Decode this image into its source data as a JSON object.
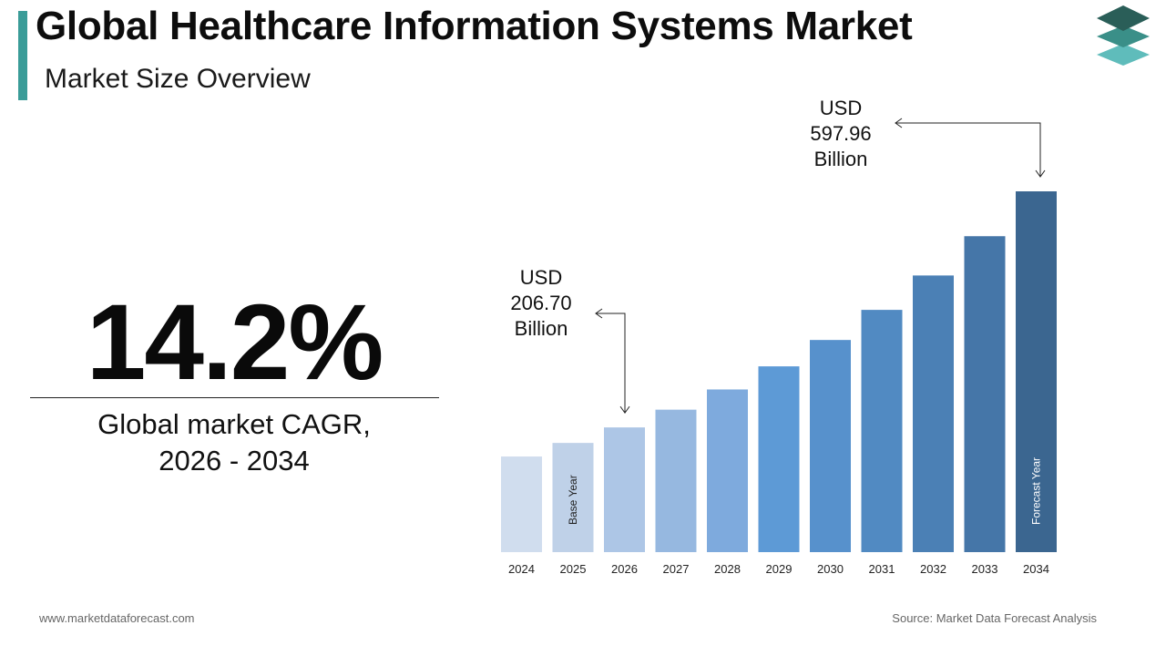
{
  "header": {
    "title": "Global Healthcare Information Systems Market",
    "subtitle": "Market Size Overview"
  },
  "cagr": {
    "value": "14.2%",
    "label_line1": "Global market CAGR,",
    "label_line2": "2026 - 2034"
  },
  "chart_data": {
    "type": "bar",
    "categories": [
      "2024",
      "2025",
      "2026",
      "2027",
      "2028",
      "2029",
      "2030",
      "2031",
      "2032",
      "2033",
      "2034"
    ],
    "values": [
      158.5,
      181.0,
      206.7,
      236.1,
      269.6,
      307.9,
      351.6,
      401.5,
      458.5,
      523.6,
      597.96
    ],
    "ylim": [
      0,
      597.96
    ],
    "grid": false,
    "colors": [
      "#d0ddee",
      "#bfd1e8",
      "#adc6e6",
      "#96b8e0",
      "#7eaadd",
      "#5d9ad6",
      "#5791cc",
      "#518ac2",
      "#4b80b5",
      "#4576a8",
      "#3b6690"
    ],
    "bar_labels": [
      {
        "category": "2025",
        "text": "Base Year"
      },
      {
        "category": "2034",
        "text": "Forecast Year"
      }
    ],
    "annotations": [
      {
        "category": "2026",
        "lines": [
          "USD",
          "206.70",
          "Billion"
        ]
      },
      {
        "category": "2034",
        "lines": [
          "USD",
          "597.96",
          "Billion"
        ]
      }
    ]
  },
  "footer": {
    "website": "www.marketdataforecast.com",
    "source": "Source: Market Data Forecast Analysis"
  }
}
